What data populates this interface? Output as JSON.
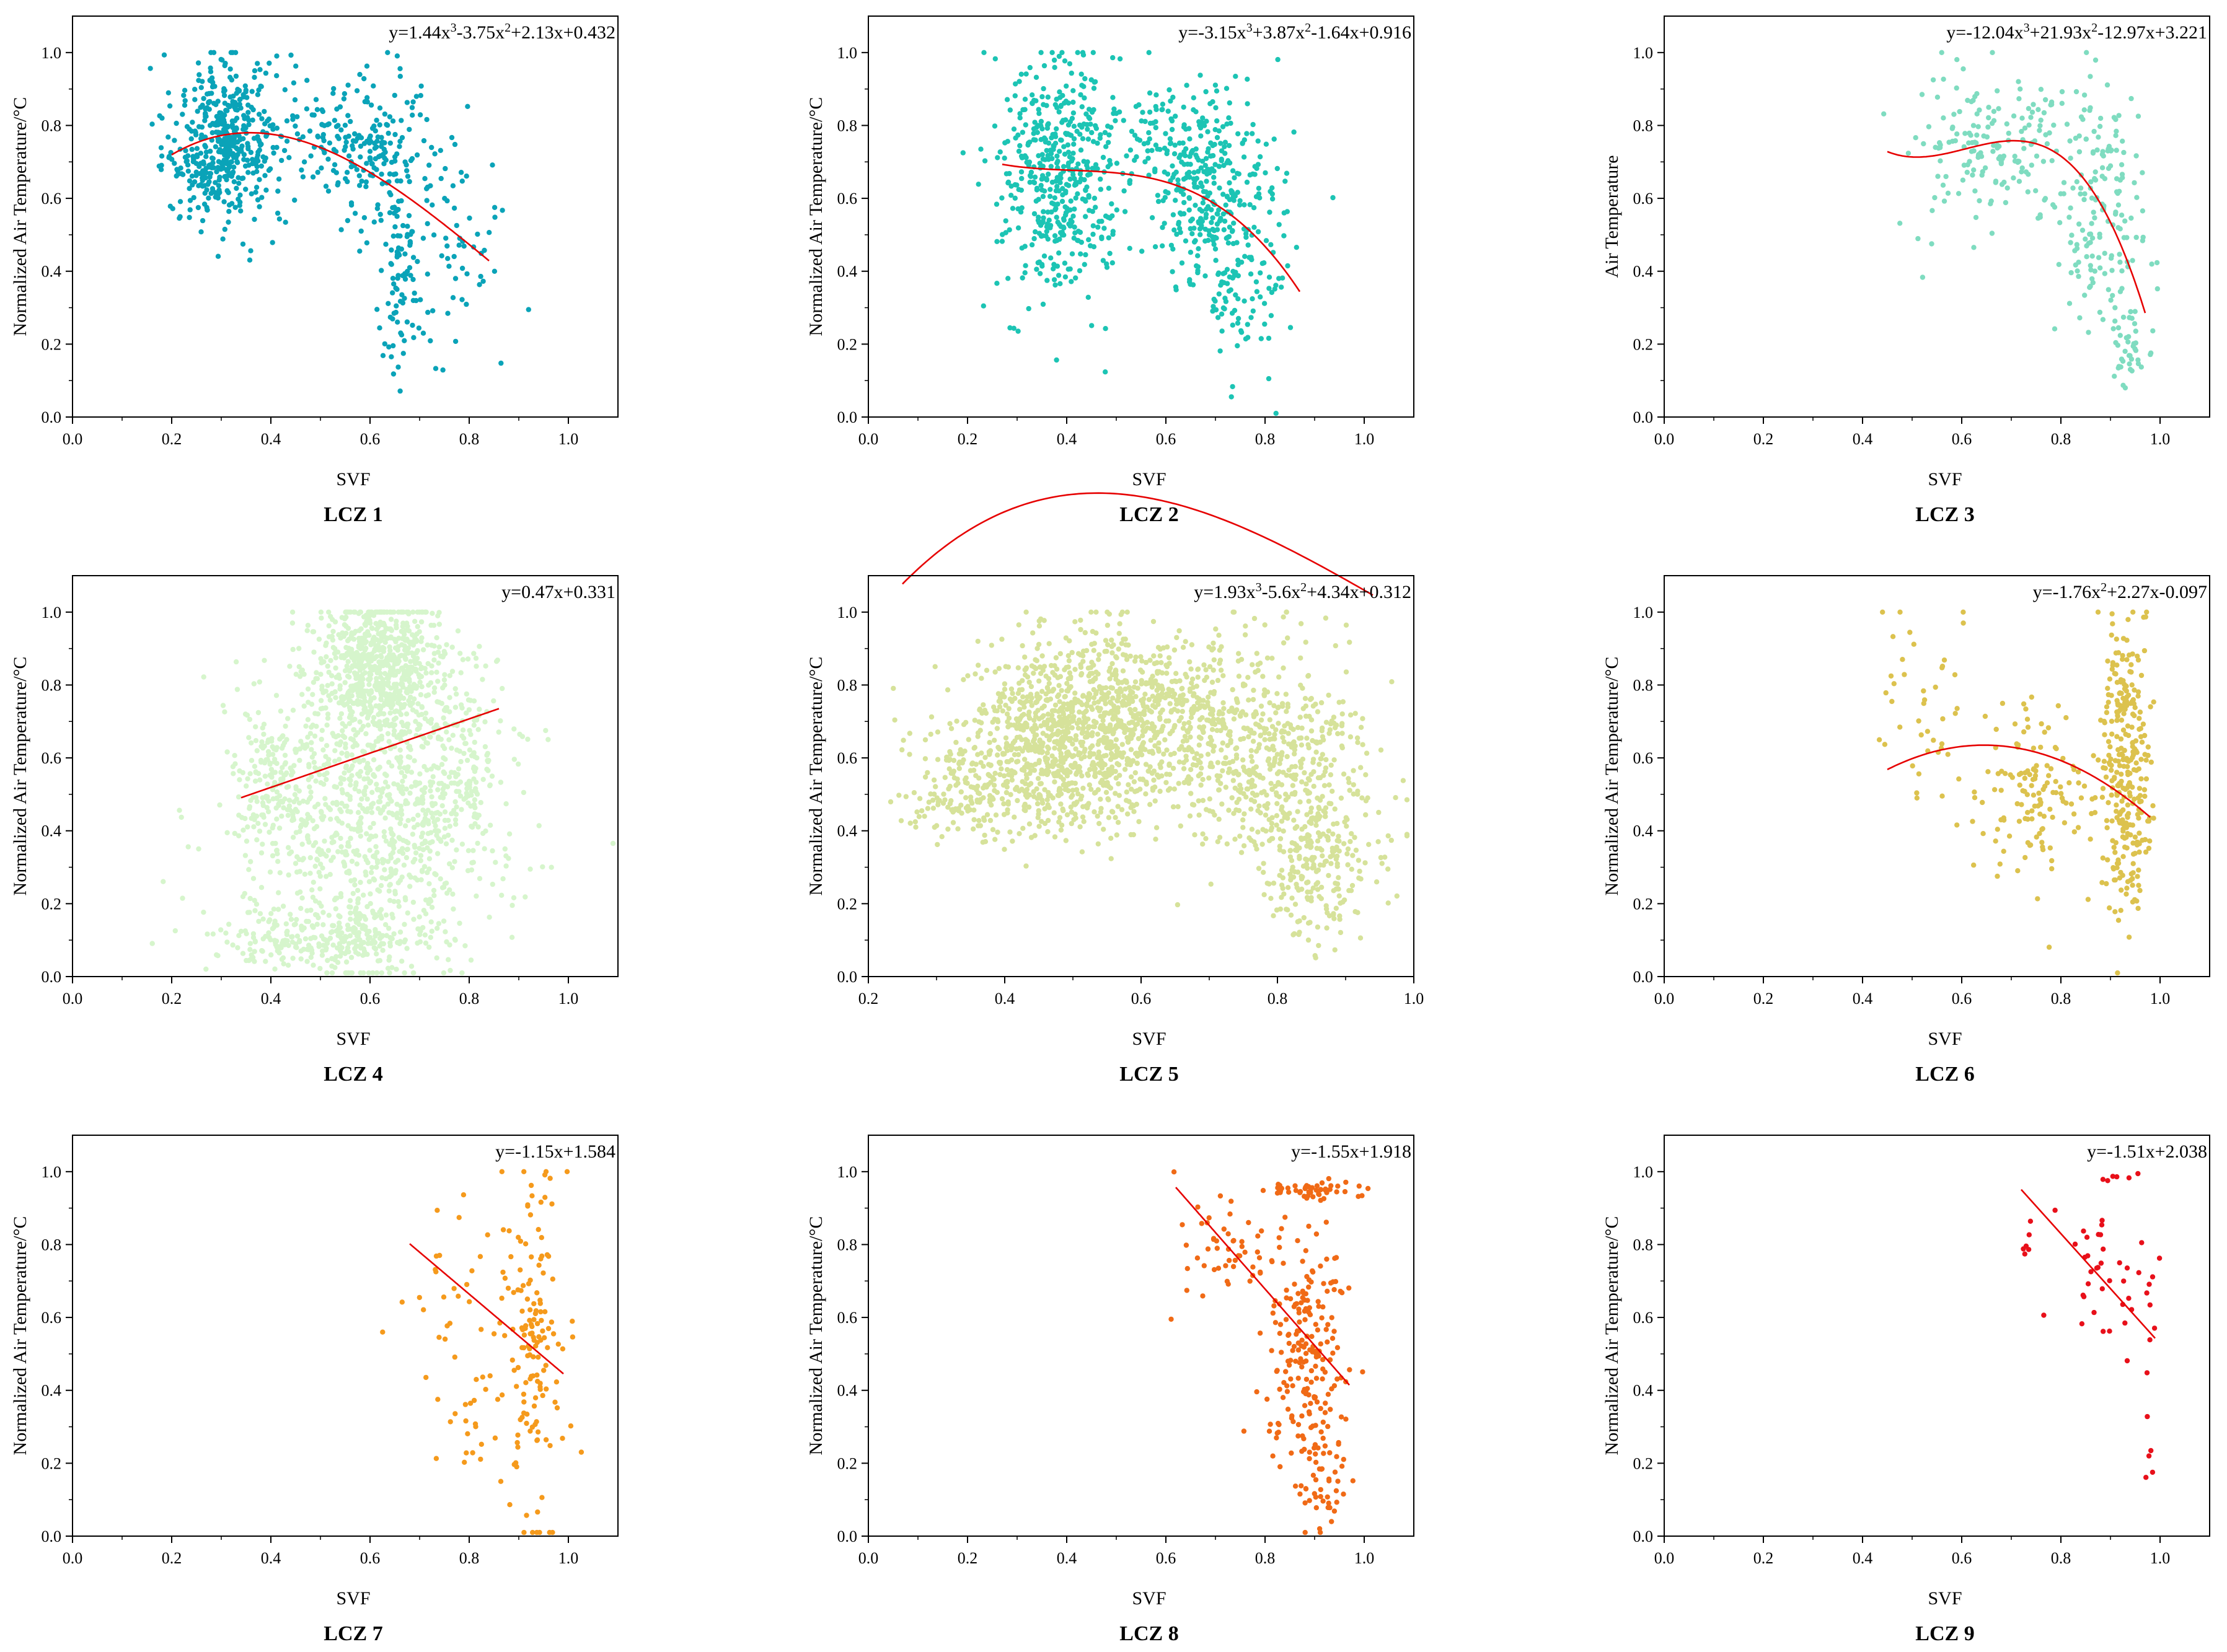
{
  "figure": {
    "background": "#ffffff",
    "fit_color": "#e60000"
  },
  "chart_data": [
    {
      "id": "lcz1",
      "type": "scatter",
      "title": "LCZ 1",
      "xlabel": "SVF",
      "ylabel": "Normalized Air Temperature/°C",
      "xlim": [
        0.0,
        1.1
      ],
      "ylim": [
        0.0,
        1.1
      ],
      "xticks": [
        0.0,
        0.2,
        0.4,
        0.6,
        0.8,
        1.0
      ],
      "yticks": [
        0.0,
        0.2,
        0.4,
        0.6,
        0.8,
        1.0
      ],
      "point_color": "#0aa3b8",
      "equation": {
        "prefix": "y=1.44x",
        "sup1": "3",
        "mid1": "-3.75x",
        "sup2": "2",
        "rest": "+2.13x+0.432"
      },
      "fit": {
        "coeffs": [
          1.44,
          -3.75,
          2.13,
          0.432
        ],
        "x_range": [
          0.2,
          0.84
        ]
      },
      "clusters": [
        {
          "cx": 0.31,
          "cy": 0.76,
          "sx": 0.05,
          "sy": 0.11,
          "n": 420
        },
        {
          "cx": 0.26,
          "cy": 0.68,
          "sx": 0.04,
          "sy": 0.08,
          "n": 60
        },
        {
          "cx": 0.6,
          "cy": 0.74,
          "sx": 0.05,
          "sy": 0.09,
          "n": 170
        },
        {
          "cx": 0.66,
          "cy": 0.4,
          "sx": 0.02,
          "sy": 0.16,
          "n": 90
        },
        {
          "cx": 0.77,
          "cy": 0.55,
          "sx": 0.05,
          "sy": 0.17,
          "n": 70
        },
        {
          "cx": 0.47,
          "cy": 0.78,
          "sx": 0.05,
          "sy": 0.09,
          "n": 50
        }
      ]
    },
    {
      "id": "lcz2",
      "type": "scatter",
      "title": "LCZ 2",
      "xlabel": "SVF",
      "ylabel": "Normalized Air Temperature/°C",
      "xlim": [
        0.0,
        1.1
      ],
      "ylim": [
        0.0,
        1.1
      ],
      "xticks": [
        0.0,
        0.2,
        0.4,
        0.6,
        0.8,
        1.0
      ],
      "yticks": [
        0.0,
        0.2,
        0.4,
        0.6,
        0.8,
        1.0
      ],
      "point_color": "#1cc4b4",
      "equation": {
        "prefix": "y=-3.15x",
        "sup1": "3",
        "mid1": "+3.87x",
        "sup2": "2",
        "rest": "-1.64x+0.916"
      },
      "fit": {
        "coeffs": [
          -3.15,
          3.87,
          -1.64,
          0.916
        ],
        "x_range": [
          0.27,
          0.87
        ]
      },
      "clusters": [
        {
          "cx": 0.39,
          "cy": 0.66,
          "sx": 0.06,
          "sy": 0.17,
          "n": 480
        },
        {
          "cx": 0.68,
          "cy": 0.63,
          "sx": 0.05,
          "sy": 0.14,
          "n": 280
        },
        {
          "cx": 0.58,
          "cy": 0.78,
          "sx": 0.05,
          "sy": 0.07,
          "n": 70
        },
        {
          "cx": 0.8,
          "cy": 0.5,
          "sx": 0.04,
          "sy": 0.18,
          "n": 70
        },
        {
          "cx": 0.73,
          "cy": 0.3,
          "sx": 0.02,
          "sy": 0.1,
          "n": 40
        }
      ]
    },
    {
      "id": "lcz3",
      "type": "scatter",
      "title": "LCZ 3",
      "xlabel": "SVF",
      "ylabel": "Air Temperature",
      "xlim": [
        0.0,
        1.1
      ],
      "ylim": [
        0.0,
        1.1
      ],
      "xticks": [
        0.0,
        0.2,
        0.4,
        0.6,
        0.8,
        1.0
      ],
      "yticks": [
        0.0,
        0.2,
        0.4,
        0.6,
        0.8,
        1.0
      ],
      "point_color": "#7fdcc0",
      "equation": {
        "prefix": "y=-12.04x",
        "sup1": "3",
        "mid1": "+21.93x",
        "sup2": "2",
        "rest": "-12.97x+3.221"
      },
      "fit": {
        "coeffs": [
          -12.04,
          21.93,
          -12.97,
          3.221
        ],
        "x_range": [
          0.45,
          0.97
        ]
      },
      "clusters": [
        {
          "cx": 0.7,
          "cy": 0.75,
          "sx": 0.08,
          "sy": 0.1,
          "n": 140
        },
        {
          "cx": 0.88,
          "cy": 0.55,
          "sx": 0.05,
          "sy": 0.17,
          "n": 160
        },
        {
          "cx": 0.94,
          "cy": 0.2,
          "sx": 0.02,
          "sy": 0.06,
          "n": 40
        },
        {
          "cx": 0.56,
          "cy": 0.72,
          "sx": 0.05,
          "sy": 0.12,
          "n": 40
        }
      ]
    },
    {
      "id": "lcz4",
      "type": "scatter",
      "title": "LCZ 4",
      "xlabel": "SVF",
      "ylabel": "Normalized Air Temperature/°C",
      "xlim": [
        0.0,
        1.1
      ],
      "ylim": [
        0.0,
        1.1
      ],
      "xticks": [
        0.0,
        0.2,
        0.4,
        0.6,
        0.8,
        1.0
      ],
      "yticks": [
        0.0,
        0.2,
        0.4,
        0.6,
        0.8,
        1.0
      ],
      "point_color": "#d6f5cc",
      "equation": {
        "prefix": "y=0.47x+0.331"
      },
      "fit": {
        "coeffs": [
          0,
          0,
          0.47,
          0.331
        ],
        "x_range": [
          0.34,
          0.86
        ]
      },
      "clusters": [
        {
          "cx": 0.62,
          "cy": 0.85,
          "sx": 0.06,
          "sy": 0.09,
          "n": 650
        },
        {
          "cx": 0.6,
          "cy": 0.45,
          "sx": 0.12,
          "sy": 0.2,
          "n": 950
        },
        {
          "cx": 0.52,
          "cy": 0.1,
          "sx": 0.12,
          "sy": 0.04,
          "n": 280
        },
        {
          "cx": 0.4,
          "cy": 0.55,
          "sx": 0.04,
          "sy": 0.1,
          "n": 140
        },
        {
          "cx": 0.78,
          "cy": 0.6,
          "sx": 0.04,
          "sy": 0.14,
          "n": 160
        }
      ]
    },
    {
      "id": "lcz5",
      "type": "scatter",
      "title": "LCZ 5",
      "xlabel": "SVF",
      "ylabel": "Normalized Air Temperature/°C",
      "xlim": [
        0.2,
        1.0
      ],
      "ylim": [
        0.0,
        1.1
      ],
      "xticks": [
        0.2,
        0.4,
        0.6,
        0.8,
        1.0
      ],
      "yticks": [
        0.0,
        0.2,
        0.4,
        0.6,
        0.8,
        1.0
      ],
      "point_color": "#d6e29a",
      "equation": {
        "prefix": "y=1.93x",
        "sup1": "3",
        "mid1": "-5.6x",
        "sup2": "2",
        "rest": "+4.34x+0.312"
      },
      "fit": {
        "coeffs": [
          1.93,
          -5.6,
          4.34,
          0.312
        ],
        "x_range": [
          0.25,
          0.94
        ]
      },
      "clusters": [
        {
          "cx": 0.55,
          "cy": 0.7,
          "sx": 0.1,
          "sy": 0.12,
          "n": 1150
        },
        {
          "cx": 0.45,
          "cy": 0.55,
          "sx": 0.07,
          "sy": 0.09,
          "n": 380
        },
        {
          "cx": 0.8,
          "cy": 0.6,
          "sx": 0.07,
          "sy": 0.15,
          "n": 480
        },
        {
          "cx": 0.86,
          "cy": 0.3,
          "sx": 0.04,
          "sy": 0.1,
          "n": 220
        },
        {
          "cx": 0.32,
          "cy": 0.48,
          "sx": 0.04,
          "sy": 0.05,
          "n": 60
        }
      ]
    },
    {
      "id": "lcz6",
      "type": "scatter",
      "title": "LCZ 6",
      "xlabel": "SVF",
      "ylabel": "Normalized Air Temperature/°C",
      "xlim": [
        0.0,
        1.1
      ],
      "ylim": [
        0.0,
        1.1
      ],
      "xticks": [
        0.0,
        0.2,
        0.4,
        0.6,
        0.8,
        1.0
      ],
      "yticks": [
        0.0,
        0.2,
        0.4,
        0.6,
        0.8,
        1.0
      ],
      "point_color": "#dcc24e",
      "equation": {
        "prefix": "y=-1.76x",
        "sup1": "2",
        "rest": "+2.27x-0.097"
      },
      "fit": {
        "coeffs": [
          0,
          -1.76,
          2.27,
          -0.097
        ],
        "x_range": [
          0.45,
          0.98
        ]
      },
      "clusters": [
        {
          "cx": 0.93,
          "cy": 0.55,
          "sx": 0.025,
          "sy": 0.2,
          "n": 300
        },
        {
          "cx": 0.75,
          "cy": 0.5,
          "sx": 0.07,
          "sy": 0.13,
          "n": 140
        },
        {
          "cx": 0.52,
          "cy": 0.75,
          "sx": 0.05,
          "sy": 0.15,
          "n": 40
        }
      ]
    },
    {
      "id": "lcz7",
      "type": "scatter",
      "title": "LCZ 7",
      "xlabel": "SVF",
      "ylabel": "Normalized Air Temperature/°C",
      "xlim": [
        0.0,
        1.1
      ],
      "ylim": [
        0.0,
        1.1
      ],
      "xticks": [
        0.0,
        0.2,
        0.4,
        0.6,
        0.8,
        1.0
      ],
      "yticks": [
        0.0,
        0.2,
        0.4,
        0.6,
        0.8,
        1.0
      ],
      "point_color": "#f59a1c",
      "equation": {
        "prefix": "y=-1.15x+1.584"
      },
      "fit": {
        "coeffs": [
          0,
          0,
          -1.15,
          1.584
        ],
        "x_range": [
          0.68,
          0.99
        ]
      },
      "clusters": [
        {
          "cx": 0.93,
          "cy": 0.55,
          "sx": 0.03,
          "sy": 0.25,
          "n": 150
        },
        {
          "cx": 0.78,
          "cy": 0.6,
          "sx": 0.05,
          "sy": 0.17,
          "n": 40
        },
        {
          "cx": 0.8,
          "cy": 0.28,
          "sx": 0.02,
          "sy": 0.05,
          "n": 10
        }
      ]
    },
    {
      "id": "lcz8",
      "type": "scatter",
      "title": "LCZ 8",
      "xlabel": "SVF",
      "ylabel": "Normalized Air Temperature/°C",
      "xlim": [
        0.0,
        1.1
      ],
      "ylim": [
        0.0,
        1.1
      ],
      "xticks": [
        0.0,
        0.2,
        0.4,
        0.6,
        0.8,
        1.0
      ],
      "yticks": [
        0.0,
        0.2,
        0.4,
        0.6,
        0.8,
        1.0
      ],
      "point_color": "#f06a16",
      "equation": {
        "prefix": "y=-1.55x+1.918"
      },
      "fit": {
        "coeffs": [
          0,
          0,
          -1.55,
          1.918
        ],
        "x_range": [
          0.62,
          0.97
        ]
      },
      "clusters": [
        {
          "cx": 0.88,
          "cy": 0.5,
          "sx": 0.04,
          "sy": 0.15,
          "n": 210
        },
        {
          "cx": 0.9,
          "cy": 0.95,
          "sx": 0.04,
          "sy": 0.015,
          "n": 50
        },
        {
          "cx": 0.92,
          "cy": 0.15,
          "sx": 0.02,
          "sy": 0.08,
          "n": 40
        },
        {
          "cx": 0.72,
          "cy": 0.78,
          "sx": 0.05,
          "sy": 0.08,
          "n": 50
        }
      ]
    },
    {
      "id": "lcz9",
      "type": "scatter",
      "title": "LCZ 9",
      "xlabel": "SVF",
      "ylabel": "Normalized Air Temperature/°C",
      "xlim": [
        0.0,
        1.1
      ],
      "ylim": [
        0.0,
        1.1
      ],
      "xticks": [
        0.0,
        0.2,
        0.4,
        0.6,
        0.8,
        1.0
      ],
      "yticks": [
        0.0,
        0.2,
        0.4,
        0.6,
        0.8,
        1.0
      ],
      "point_color": "#e8101a",
      "equation": {
        "prefix": "y=-1.51x+2.038"
      },
      "fit": {
        "coeffs": [
          0,
          0,
          -1.51,
          2.038
        ],
        "x_range": [
          0.72,
          0.99
        ]
      },
      "clusters": [
        {
          "cx": 0.9,
          "cy": 0.72,
          "sx": 0.05,
          "sy": 0.1,
          "n": 40
        },
        {
          "cx": 0.73,
          "cy": 0.8,
          "sx": 0.005,
          "sy": 0.04,
          "n": 6
        },
        {
          "cx": 0.91,
          "cy": 0.985,
          "sx": 0.03,
          "sy": 0.01,
          "n": 6
        },
        {
          "cx": 0.98,
          "cy": 0.3,
          "sx": 0.006,
          "sy": 0.15,
          "n": 8
        }
      ]
    }
  ]
}
